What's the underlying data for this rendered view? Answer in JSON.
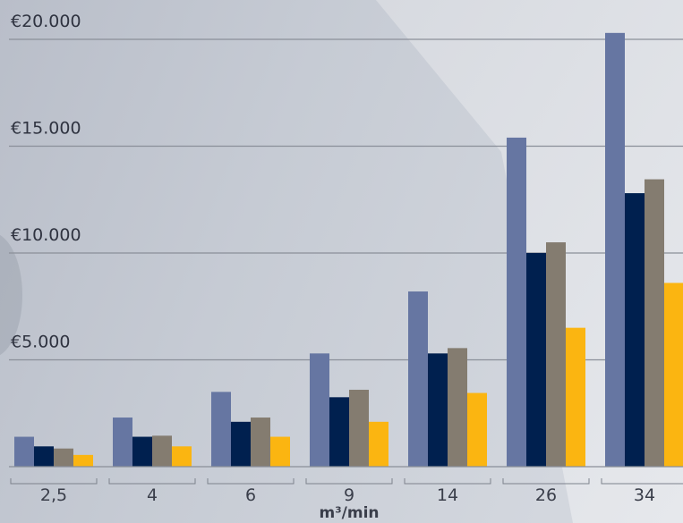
{
  "chart_data": {
    "type": "bar",
    "categories": [
      "2,5",
      "4",
      "6",
      "9",
      "14",
      "26",
      "34"
    ],
    "series": [
      {
        "color": "#6676a2",
        "values": [
          1400,
          2300,
          3500,
          5300,
          8200,
          15400,
          20300
        ]
      },
      {
        "color": "#00204f",
        "values": [
          950,
          1400,
          2100,
          3250,
          5300,
          10000,
          12800
        ]
      },
      {
        "color": "#847c70",
        "values": [
          850,
          1450,
          2300,
          3600,
          5550,
          10500,
          13450
        ]
      },
      {
        "color": "#fbb511",
        "values": [
          550,
          950,
          1400,
          2100,
          3450,
          6500,
          8600
        ]
      }
    ],
    "yticks": [
      5000,
      10000,
      15000,
      20000
    ],
    "ytick_labels": [
      "€5.000",
      "€10.000",
      "€15.000",
      "€20.000"
    ],
    "ylim": [
      0,
      20000
    ],
    "xlabel": "m³/min",
    "ylabel": "",
    "title": "",
    "grid": true
  }
}
